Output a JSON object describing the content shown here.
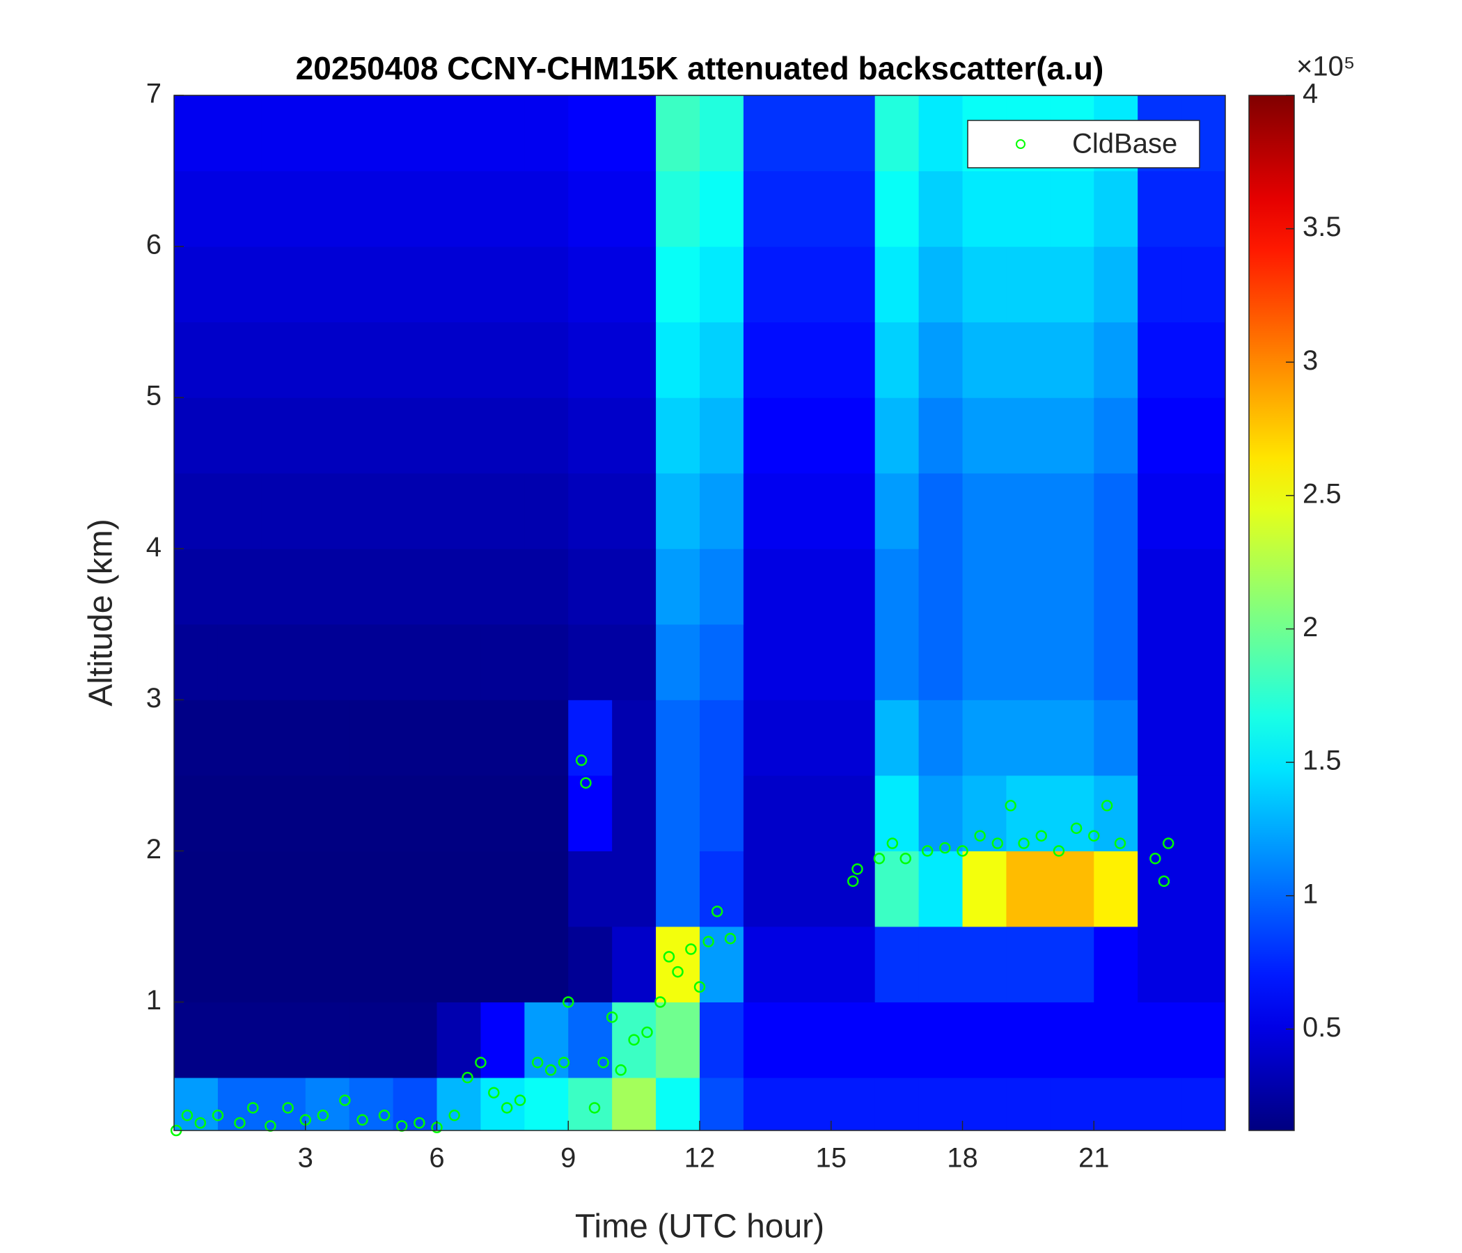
{
  "chart_data": {
    "type": "heatmap",
    "title": "20250408 CCNY-CHM15K attenuated backscatter(a.u)",
    "x_label": "Time (UTC hour)",
    "y_label": "Altitude (km)",
    "xlim": [
      0,
      24
    ],
    "ylim": [
      0.15,
      7
    ],
    "xticks": [
      3,
      6,
      9,
      12,
      15,
      18,
      21
    ],
    "yticks": [
      1,
      2,
      3,
      4,
      5,
      6,
      7
    ],
    "colormap": "jet",
    "colorbar_lim": [
      0.12,
      4
    ],
    "colorbar_ticks": [
      0.5,
      1,
      1.5,
      2,
      2.5,
      3,
      3.5,
      4
    ],
    "colorbar_exponent": "×10⁵",
    "legend_position": "upper right",
    "heatmap": {
      "x_edges": [
        0,
        1,
        2,
        3,
        4,
        5,
        6,
        7,
        8,
        9,
        10,
        11,
        12,
        13,
        14,
        15,
        16,
        17,
        18,
        19,
        20,
        21,
        22,
        23,
        24
      ],
      "y_edges": [
        0.15,
        0.5,
        1,
        1.5,
        2,
        2.5,
        3,
        3.5,
        4,
        4.5,
        5,
        5.5,
        6,
        6.5,
        7
      ],
      "values": [
        [
          1.2,
          1.0,
          1.0,
          1.1,
          1.0,
          0.9,
          1.3,
          1.5,
          1.6,
          1.8,
          2.2,
          1.6,
          0.9,
          0.7,
          0.7,
          0.7,
          0.7,
          0.7,
          0.7,
          0.7,
          0.7,
          0.7,
          0.7,
          0.7
        ],
        [
          0.15,
          0.15,
          0.15,
          0.15,
          0.15,
          0.15,
          0.3,
          0.6,
          1.2,
          1.0,
          1.8,
          2.0,
          0.8,
          0.6,
          0.6,
          0.6,
          0.6,
          0.6,
          0.6,
          0.6,
          0.6,
          0.6,
          0.6,
          0.6
        ],
        [
          0.12,
          0.12,
          0.12,
          0.12,
          0.12,
          0.12,
          0.12,
          0.12,
          0.12,
          0.2,
          0.4,
          2.5,
          1.2,
          0.5,
          0.5,
          0.5,
          0.8,
          0.8,
          0.8,
          0.8,
          0.8,
          0.6,
          0.5,
          0.5
        ],
        [
          0.12,
          0.12,
          0.12,
          0.12,
          0.12,
          0.12,
          0.12,
          0.12,
          0.12,
          0.3,
          0.3,
          1.0,
          0.8,
          0.4,
          0.4,
          0.4,
          1.8,
          1.5,
          2.5,
          2.8,
          2.8,
          2.6,
          0.5,
          0.5
        ],
        [
          0.13,
          0.13,
          0.13,
          0.13,
          0.13,
          0.13,
          0.13,
          0.13,
          0.13,
          0.6,
          0.3,
          1.0,
          0.9,
          0.4,
          0.4,
          0.4,
          1.5,
          1.2,
          1.3,
          1.4,
          1.4,
          1.3,
          0.5,
          0.5
        ],
        [
          0.15,
          0.15,
          0.15,
          0.15,
          0.15,
          0.15,
          0.15,
          0.15,
          0.15,
          0.7,
          0.3,
          1.0,
          0.9,
          0.45,
          0.45,
          0.45,
          1.3,
          1.1,
          1.2,
          1.2,
          1.2,
          1.1,
          0.5,
          0.5
        ],
        [
          0.2,
          0.2,
          0.2,
          0.2,
          0.2,
          0.2,
          0.2,
          0.2,
          0.2,
          0.25,
          0.25,
          1.1,
          1.0,
          0.5,
          0.5,
          0.5,
          1.1,
          1.0,
          1.1,
          1.1,
          1.1,
          1.0,
          0.5,
          0.5
        ],
        [
          0.25,
          0.25,
          0.25,
          0.25,
          0.25,
          0.25,
          0.25,
          0.25,
          0.25,
          0.3,
          0.3,
          1.2,
          1.1,
          0.5,
          0.5,
          0.5,
          1.1,
          1.0,
          1.1,
          1.1,
          1.1,
          1.0,
          0.5,
          0.5
        ],
        [
          0.3,
          0.3,
          0.3,
          0.3,
          0.3,
          0.3,
          0.3,
          0.3,
          0.3,
          0.35,
          0.35,
          1.3,
          1.2,
          0.55,
          0.55,
          0.55,
          1.2,
          1.0,
          1.1,
          1.1,
          1.1,
          1.0,
          0.55,
          0.55
        ],
        [
          0.35,
          0.35,
          0.35,
          0.35,
          0.35,
          0.35,
          0.35,
          0.35,
          0.35,
          0.4,
          0.4,
          1.4,
          1.3,
          0.6,
          0.6,
          0.6,
          1.3,
          1.1,
          1.2,
          1.2,
          1.2,
          1.1,
          0.6,
          0.6
        ],
        [
          0.4,
          0.4,
          0.4,
          0.4,
          0.4,
          0.4,
          0.4,
          0.4,
          0.4,
          0.45,
          0.45,
          1.5,
          1.4,
          0.65,
          0.65,
          0.65,
          1.4,
          1.2,
          1.3,
          1.3,
          1.3,
          1.2,
          0.65,
          0.65
        ],
        [
          0.45,
          0.45,
          0.45,
          0.45,
          0.45,
          0.45,
          0.45,
          0.45,
          0.45,
          0.5,
          0.5,
          1.6,
          1.5,
          0.7,
          0.7,
          0.7,
          1.5,
          1.3,
          1.4,
          1.4,
          1.4,
          1.3,
          0.7,
          0.7
        ],
        [
          0.5,
          0.5,
          0.5,
          0.5,
          0.5,
          0.5,
          0.5,
          0.5,
          0.5,
          0.55,
          0.55,
          1.7,
          1.6,
          0.75,
          0.75,
          0.75,
          1.6,
          1.4,
          1.5,
          1.5,
          1.5,
          1.4,
          0.75,
          0.75
        ],
        [
          0.55,
          0.55,
          0.55,
          0.55,
          0.55,
          0.55,
          0.55,
          0.55,
          0.55,
          0.6,
          0.6,
          1.8,
          1.7,
          0.8,
          0.8,
          0.8,
          1.7,
          1.5,
          1.6,
          1.6,
          1.6,
          1.5,
          0.8,
          0.8
        ]
      ]
    },
    "series": [
      {
        "name": "CldBase",
        "color": "#00ff00",
        "x": [
          0.05,
          0.3,
          0.6,
          1.0,
          1.5,
          1.8,
          2.2,
          2.6,
          3.0,
          3.4,
          3.9,
          4.3,
          4.8,
          5.2,
          5.6,
          6.0,
          6.4,
          6.7,
          7.0,
          7.3,
          7.6,
          7.9,
          8.3,
          8.6,
          8.9,
          9.0,
          9.3,
          9.4,
          9.6,
          9.8,
          10.0,
          10.2,
          10.5,
          10.8,
          11.1,
          11.3,
          11.5,
          11.8,
          12.0,
          12.2,
          12.4,
          12.7,
          15.5,
          15.6,
          16.1,
          16.4,
          16.7,
          17.2,
          17.6,
          18.0,
          18.4,
          18.8,
          19.1,
          19.4,
          19.8,
          20.2,
          20.6,
          21.0,
          21.3,
          21.6,
          22.4,
          22.6,
          22.7
        ],
        "values": [
          0.15,
          0.25,
          0.2,
          0.25,
          0.2,
          0.3,
          0.18,
          0.3,
          0.22,
          0.25,
          0.35,
          0.22,
          0.25,
          0.18,
          0.2,
          0.17,
          0.25,
          0.5,
          0.6,
          0.4,
          0.3,
          0.35,
          0.6,
          0.55,
          0.6,
          1.0,
          2.6,
          2.45,
          0.3,
          0.6,
          0.9,
          0.55,
          0.75,
          0.8,
          1.0,
          1.3,
          1.2,
          1.35,
          1.1,
          1.4,
          1.6,
          1.42,
          1.8,
          1.88,
          1.95,
          2.05,
          1.95,
          2.0,
          2.02,
          2.0,
          2.1,
          2.05,
          2.3,
          2.05,
          2.1,
          2.0,
          2.15,
          2.1,
          2.3,
          2.05,
          1.95,
          1.8,
          2.05
        ]
      }
    ]
  }
}
